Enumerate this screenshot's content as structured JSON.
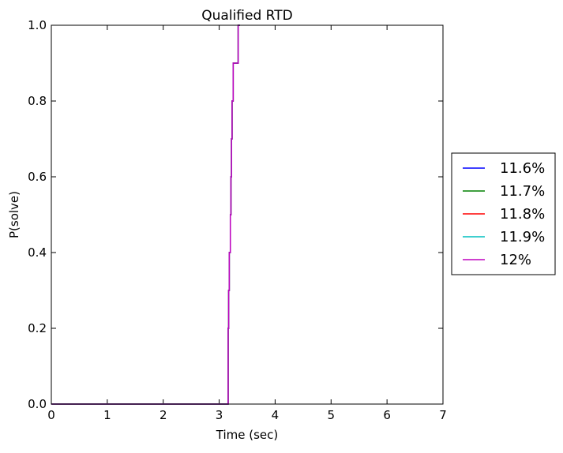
{
  "chart_data": {
    "type": "line",
    "title": "Qualified RTD",
    "xlabel": "Time (sec)",
    "ylabel": "P(solve)",
    "xlim": [
      0,
      7
    ],
    "ylim": [
      0,
      1
    ],
    "xticks": [
      0,
      1,
      2,
      3,
      4,
      5,
      6,
      7
    ],
    "yticks": [
      0.0,
      0.2,
      0.4,
      0.6,
      0.8,
      1.0
    ],
    "xtick_labels": [
      "0",
      "1",
      "2",
      "3",
      "4",
      "5",
      "6",
      "7"
    ],
    "ytick_labels": [
      "0.0",
      "0.2",
      "0.4",
      "0.6",
      "0.8",
      "1.0"
    ],
    "grid": false,
    "legend_position": "outside-right",
    "series": [
      {
        "name": "11.6%",
        "color": "#0000ff",
        "x": [
          0,
          3.16,
          3.16,
          3.17,
          3.17,
          3.18,
          3.18,
          3.2,
          3.2,
          3.21,
          3.21,
          3.22,
          3.22,
          3.23,
          3.23,
          3.25,
          3.25,
          3.34,
          3.34,
          3.37
        ],
        "y": [
          0,
          0,
          0.2,
          0.2,
          0.3,
          0.3,
          0.4,
          0.4,
          0.5,
          0.5,
          0.6,
          0.6,
          0.7,
          0.7,
          0.8,
          0.8,
          0.9,
          0.9,
          1.0,
          1.0
        ]
      },
      {
        "name": "11.7%",
        "color": "#008000",
        "x": [
          0,
          3.16,
          3.16,
          3.17,
          3.17,
          3.18,
          3.18,
          3.2,
          3.2,
          3.21,
          3.21,
          3.22,
          3.22,
          3.23,
          3.23,
          3.25,
          3.25,
          3.34,
          3.34,
          3.37
        ],
        "y": [
          0,
          0,
          0.2,
          0.2,
          0.3,
          0.3,
          0.4,
          0.4,
          0.5,
          0.5,
          0.6,
          0.6,
          0.7,
          0.7,
          0.8,
          0.8,
          0.9,
          0.9,
          1.0,
          1.0
        ]
      },
      {
        "name": "11.8%",
        "color": "#ff0000",
        "x": [
          0,
          3.16,
          3.16,
          3.17,
          3.17,
          3.18,
          3.18,
          3.2,
          3.2,
          3.21,
          3.21,
          3.22,
          3.22,
          3.23,
          3.23,
          3.25,
          3.25,
          3.34,
          3.34,
          3.37
        ],
        "y": [
          0,
          0,
          0.2,
          0.2,
          0.3,
          0.3,
          0.4,
          0.4,
          0.5,
          0.5,
          0.6,
          0.6,
          0.7,
          0.7,
          0.8,
          0.8,
          0.9,
          0.9,
          1.0,
          1.0
        ]
      },
      {
        "name": "11.9%",
        "color": "#00bfbf",
        "x": [
          0,
          3.16,
          3.16,
          3.17,
          3.17,
          3.18,
          3.18,
          3.2,
          3.2,
          3.21,
          3.21,
          3.22,
          3.22,
          3.23,
          3.23,
          3.25,
          3.25,
          3.34,
          3.34,
          3.37
        ],
        "y": [
          0,
          0,
          0.2,
          0.2,
          0.3,
          0.3,
          0.4,
          0.4,
          0.5,
          0.5,
          0.6,
          0.6,
          0.7,
          0.7,
          0.8,
          0.8,
          0.9,
          0.9,
          1.0,
          1.0
        ]
      },
      {
        "name": "12%",
        "color": "#bf00bf",
        "x": [
          0,
          3.16,
          3.16,
          3.17,
          3.17,
          3.18,
          3.18,
          3.2,
          3.2,
          3.21,
          3.21,
          3.22,
          3.22,
          3.23,
          3.23,
          3.25,
          3.25,
          3.34,
          3.34,
          3.37
        ],
        "y": [
          0,
          0,
          0.2,
          0.2,
          0.3,
          0.3,
          0.4,
          0.4,
          0.5,
          0.5,
          0.6,
          0.6,
          0.7,
          0.7,
          0.8,
          0.8,
          0.9,
          0.9,
          1.0,
          1.0
        ]
      }
    ]
  }
}
